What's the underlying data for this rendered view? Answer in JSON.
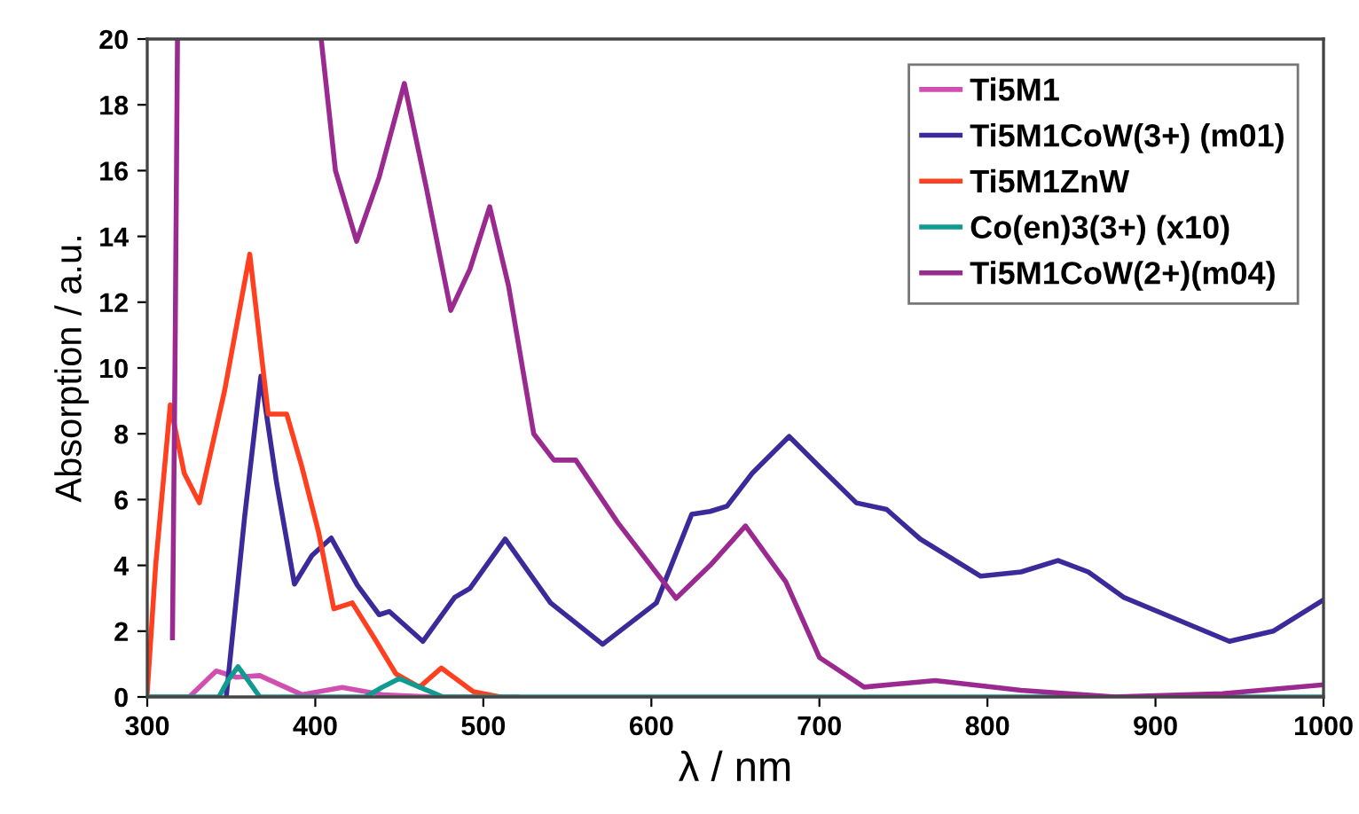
{
  "chart_data": {
    "type": "line",
    "xlabel": "λ / nm",
    "ylabel": "Absorption / a.u.",
    "xlim": [
      300,
      1000
    ],
    "xticks": [
      300,
      400,
      500,
      600,
      700,
      800,
      900,
      1000
    ],
    "ylim": [
      0,
      20
    ],
    "yticks": [
      0,
      2,
      4,
      6,
      8,
      10,
      12,
      14,
      16,
      18,
      20
    ],
    "grid": false,
    "legend": "top right",
    "marker": "none",
    "line_style": "solid",
    "series": [
      {
        "name": "Ti5M1",
        "color": "#d050b0",
        "x": [
          300,
          325,
          341,
          353,
          367,
          392,
          416,
          440,
          470,
          520
        ],
        "values": [
          0,
          0,
          0.79,
          0.6,
          0.65,
          0.07,
          0.29,
          0.07,
          0,
          0
        ]
      },
      {
        "name": "Ti5M1CoW(3+) (m01)",
        "color": "#3a2a9a",
        "x": [
          347,
          358,
          367.6,
          377,
          387.6,
          398,
          409.5,
          425,
          438,
          444,
          464,
          483,
          492,
          513,
          540,
          571,
          603,
          624,
          635,
          645,
          660,
          682,
          700,
          722,
          740,
          760,
          796,
          820,
          842,
          860,
          881,
          944,
          970,
          1000
        ],
        "values": [
          0,
          5.5,
          9.75,
          6.5,
          3.43,
          4.3,
          4.83,
          3.4,
          2.5,
          2.6,
          1.69,
          3.03,
          3.3,
          4.8,
          2.86,
          1.6,
          2.86,
          5.55,
          5.64,
          5.8,
          6.8,
          7.92,
          7.0,
          5.9,
          5.7,
          4.8,
          3.67,
          3.8,
          4.15,
          3.8,
          3.03,
          1.69,
          2.0,
          2.95
        ]
      },
      {
        "name": "Ti5M1ZnW",
        "color": "#ff4020",
        "x": [
          300,
          305,
          313.7,
          322,
          331,
          346,
          361,
          372,
          383,
          392,
          402,
          411,
          422,
          435,
          448,
          462,
          475,
          494,
          510
        ],
        "values": [
          0.15,
          4.0,
          8.88,
          6.8,
          5.9,
          9.3,
          13.46,
          8.6,
          8.6,
          7.0,
          5.0,
          2.68,
          2.86,
          1.8,
          0.7,
          0.3,
          0.88,
          0.16,
          0
        ]
      },
      {
        "name": "Co(en)3(3+) (x10)",
        "color": "#109a90",
        "x": [
          300,
          342.6,
          348,
          354,
          360,
          367,
          430,
          440,
          450,
          462,
          476,
          1000
        ],
        "values": [
          0,
          0,
          0.5,
          0.92,
          0.5,
          0,
          0,
          0.3,
          0.56,
          0.3,
          0,
          0
        ]
      },
      {
        "name": "Ti5M1CoW(2+)(m04)",
        "color": "#9a2a90",
        "x": [
          315,
          316.5,
          318,
          360,
          403.5,
          412,
          424.6,
          438,
          453,
          466,
          480.6,
          492,
          503.8,
          515,
          530,
          542,
          555,
          580,
          614.7,
          635,
          656,
          680,
          700,
          726.6,
          769,
          820,
          876,
          940,
          1000
        ],
        "values": [
          1.8,
          10.0,
          20,
          null,
          20,
          16.0,
          13.85,
          15.8,
          18.65,
          15.5,
          11.75,
          13.0,
          14.9,
          12.5,
          8.0,
          7.2,
          7.2,
          5.3,
          3.0,
          4.0,
          5.2,
          3.5,
          1.2,
          0.3,
          0.5,
          0.2,
          0,
          0.1,
          0.37
        ]
      }
    ]
  }
}
